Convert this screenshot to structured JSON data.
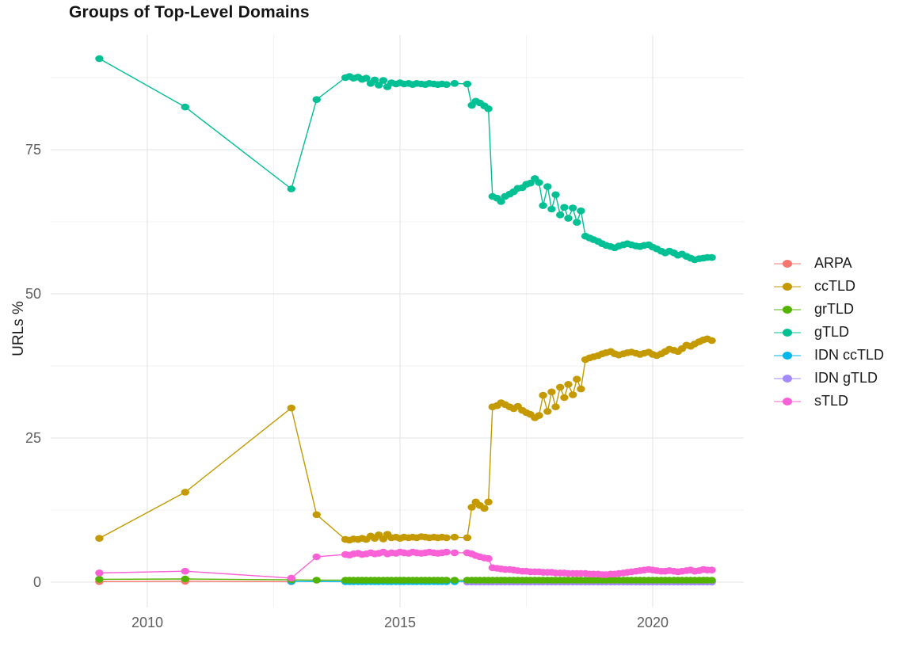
{
  "chart_data": {
    "type": "line",
    "title": "Groups of Top-Level Domains",
    "ylabel": "URLs %",
    "xlabel": "",
    "legend_position": "right",
    "grid": true,
    "x_range": [
      2008.1,
      2021.8
    ],
    "y_range": [
      -3.7,
      95
    ],
    "x_axis": {
      "ticks": [
        {
          "label": "2010",
          "year": 2010
        },
        {
          "label": "2015",
          "year": 2015
        },
        {
          "label": "2020",
          "year": 2020
        }
      ]
    },
    "y_axis": {
      "ticks": [
        {
          "label": "0",
          "value": 0
        },
        {
          "label": "25",
          "value": 25
        },
        {
          "label": "50",
          "value": 50
        },
        {
          "label": "75",
          "value": 75
        }
      ]
    },
    "x_dense": [
      2013.92,
      2014.0,
      2014.08,
      2014.17,
      2014.25,
      2014.33,
      2014.42,
      2014.5,
      2014.58,
      2014.67,
      2014.75,
      2014.83,
      2014.92,
      2015.0,
      2015.08,
      2015.17,
      2015.25,
      2015.33,
      2015.42,
      2015.5,
      2015.58,
      2015.67,
      2015.75,
      2015.83,
      2015.92,
      2016.08,
      2016.33,
      2016.42,
      2016.5,
      2016.58,
      2016.67,
      2016.75,
      2016.83,
      2016.92,
      2017.0,
      2017.08,
      2017.17,
      2017.25,
      2017.33,
      2017.42,
      2017.5,
      2017.58,
      2017.67,
      2017.75,
      2017.83,
      2017.92,
      2018.0,
      2018.08,
      2018.17,
      2018.25,
      2018.33,
      2018.42,
      2018.5,
      2018.58,
      2018.67,
      2018.75,
      2018.83,
      2018.92,
      2019.0,
      2019.08,
      2019.17,
      2019.25,
      2019.33,
      2019.42,
      2019.5,
      2019.58,
      2019.67,
      2019.75,
      2019.83,
      2019.92,
      2020.0,
      2020.08,
      2020.17,
      2020.25,
      2020.33,
      2020.42,
      2020.5,
      2020.58,
      2020.67,
      2020.75,
      2020.83,
      2020.92,
      2021.0,
      2021.08,
      2021.17
    ],
    "series": [
      {
        "name": "ARPA",
        "color": "#F8766D",
        "sparse": [
          [
            2009.05,
            0.1
          ],
          [
            2010.75,
            0.15
          ],
          [
            2012.85,
            0.08
          ]
        ],
        "dense": null,
        "dense_constant": null,
        "dense_start": 0
      },
      {
        "name": "ccTLD",
        "color": "#C49A00",
        "sparse": [
          [
            2009.05,
            7.6
          ],
          [
            2010.75,
            15.6
          ],
          [
            2012.85,
            30.2
          ],
          [
            2013.35,
            11.7
          ]
        ],
        "dense": [
          7.4,
          7.3,
          7.5,
          7.4,
          7.6,
          7.4,
          8.0,
          7.6,
          8.2,
          7.5,
          8.3,
          7.7,
          7.8,
          7.6,
          7.8,
          7.7,
          7.8,
          7.7,
          7.9,
          7.8,
          7.7,
          7.8,
          7.7,
          7.8,
          7.7,
          7.8,
          7.7,
          13.0,
          13.9,
          13.3,
          12.8,
          13.9,
          30.4,
          30.6,
          31.1,
          30.8,
          30.4,
          30.1,
          30.5,
          29.8,
          29.4,
          29.1,
          28.5,
          28.9,
          32.4,
          29.6,
          33.0,
          30.4,
          33.8,
          32.0,
          34.3,
          32.5,
          35.2,
          33.5,
          38.6,
          38.9,
          39.1,
          39.3,
          39.6,
          39.8,
          40.0,
          39.6,
          39.4,
          39.6,
          39.8,
          39.9,
          39.7,
          39.5,
          39.7,
          39.9,
          39.5,
          39.3,
          39.6,
          40.0,
          40.4,
          40.2,
          40.0,
          40.5,
          41.1,
          40.9,
          41.3,
          41.7,
          42.0,
          42.2,
          41.9
        ],
        "dense_constant": null,
        "dense_start": 0
      },
      {
        "name": "grTLD",
        "color": "#53B400",
        "sparse": [
          [
            2009.05,
            0.5
          ],
          [
            2010.75,
            0.55
          ],
          [
            2012.85,
            0.4
          ],
          [
            2013.35,
            0.35
          ]
        ],
        "dense": null,
        "dense_constant": 0.35,
        "dense_start": 0
      },
      {
        "name": "gTLD",
        "color": "#00C094",
        "sparse": [
          [
            2009.05,
            90.8
          ],
          [
            2010.75,
            82.4
          ],
          [
            2012.85,
            68.2
          ],
          [
            2013.35,
            83.7
          ]
        ],
        "dense": [
          87.5,
          87.7,
          87.4,
          87.6,
          87.2,
          87.4,
          86.5,
          87.1,
          86.2,
          87.0,
          85.9,
          86.6,
          86.4,
          86.6,
          86.4,
          86.5,
          86.3,
          86.5,
          86.4,
          86.3,
          86.5,
          86.4,
          86.3,
          86.4,
          86.3,
          86.5,
          86.4,
          82.7,
          83.4,
          83.1,
          82.6,
          82.1,
          66.9,
          66.6,
          66.0,
          66.9,
          67.3,
          67.7,
          68.3,
          68.4,
          69.0,
          69.2,
          70.0,
          69.3,
          65.3,
          68.6,
          64.7,
          67.2,
          63.7,
          65.0,
          63.1,
          64.9,
          62.4,
          64.4,
          60.0,
          59.7,
          59.4,
          59.1,
          58.7,
          58.4,
          58.2,
          58.0,
          58.3,
          58.5,
          58.7,
          58.5,
          58.3,
          58.2,
          58.4,
          58.5,
          58.1,
          57.8,
          57.4,
          57.1,
          57.4,
          57.1,
          56.7,
          56.9,
          56.5,
          56.2,
          55.9,
          56.1,
          56.2,
          56.3,
          56.3
        ],
        "dense_constant": null,
        "dense_start": 0
      },
      {
        "name": "IDN ccTLD",
        "color": "#00B6EB",
        "sparse": [
          [
            2012.85,
            0.12
          ]
        ],
        "dense": null,
        "dense_constant": 0.08,
        "dense_start": 0
      },
      {
        "name": "IDN gTLD",
        "color": "#A58AFF",
        "sparse": [],
        "dense": null,
        "dense_constant": 0.02,
        "dense_start": 26
      },
      {
        "name": "sTLD",
        "color": "#FB61D7",
        "sparse": [
          [
            2009.05,
            1.6
          ],
          [
            2010.75,
            1.9
          ],
          [
            2012.85,
            0.7
          ],
          [
            2013.35,
            4.4
          ]
        ],
        "dense": [
          4.8,
          4.7,
          4.9,
          5.0,
          4.8,
          4.9,
          5.1,
          4.9,
          5.0,
          5.2,
          4.9,
          5.1,
          5.0,
          5.2,
          5.1,
          5.0,
          5.2,
          5.1,
          5.0,
          5.1,
          5.2,
          5.1,
          5.0,
          5.1,
          5.2,
          5.1,
          5.1,
          4.9,
          4.6,
          4.4,
          4.2,
          4.1,
          2.5,
          2.4,
          2.3,
          2.2,
          2.2,
          2.1,
          2.0,
          1.9,
          1.9,
          1.8,
          1.8,
          1.8,
          1.7,
          1.7,
          1.7,
          1.6,
          1.6,
          1.6,
          1.5,
          1.5,
          1.5,
          1.5,
          1.5,
          1.4,
          1.4,
          1.4,
          1.3,
          1.3,
          1.4,
          1.4,
          1.5,
          1.6,
          1.7,
          1.8,
          1.9,
          2.0,
          2.1,
          2.2,
          2.1,
          2.0,
          1.9,
          1.9,
          2.0,
          1.9,
          1.8,
          1.9,
          2.0,
          2.1,
          1.9,
          2.0,
          2.2,
          2.1,
          2.1
        ],
        "dense_constant": null,
        "dense_start": 0
      }
    ]
  }
}
